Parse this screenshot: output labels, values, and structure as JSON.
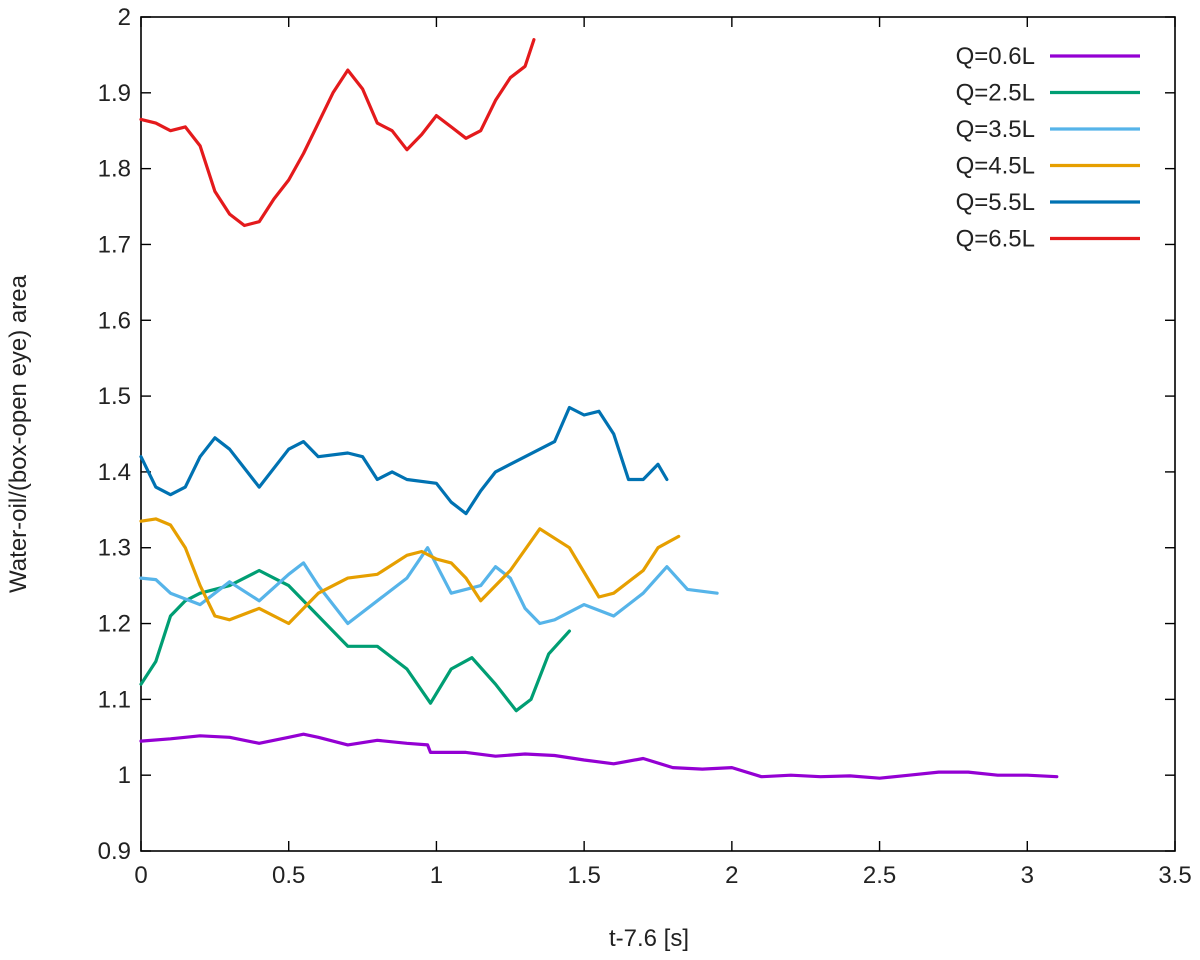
{
  "chart_data": {
    "type": "line",
    "title": "",
    "xlabel": "t-7.6 [s]",
    "ylabel": "Water-oil/(box-open eye) area",
    "xlim": [
      0,
      3.5
    ],
    "ylim": [
      0.9,
      2.0
    ],
    "xticks": [
      0,
      0.5,
      1,
      1.5,
      2,
      2.5,
      3,
      3.5
    ],
    "yticks": [
      0.9,
      1.0,
      1.1,
      1.2,
      1.3,
      1.4,
      1.5,
      1.6,
      1.7,
      1.8,
      1.9,
      2.0
    ],
    "xtick_labels": [
      "0",
      "0.5",
      "1",
      "1.5",
      "2",
      "2.5",
      "3",
      "3.5"
    ],
    "ytick_labels": [
      "0.9",
      "1",
      "1.1",
      "1.2",
      "1.3",
      "1.4",
      "1.5",
      "1.6",
      "1.7",
      "1.8",
      "1.9",
      "2"
    ],
    "grid": false,
    "legend_position": "top-right",
    "series": [
      {
        "name": "Q=0.6L",
        "color": "#9400D3",
        "x": [
          0,
          0.1,
          0.2,
          0.3,
          0.4,
          0.5,
          0.55,
          0.6,
          0.7,
          0.8,
          0.9,
          0.97,
          0.98,
          1.1,
          1.2,
          1.3,
          1.4,
          1.5,
          1.6,
          1.7,
          1.8,
          1.9,
          2.0,
          2.1,
          2.2,
          2.3,
          2.4,
          2.5,
          2.6,
          2.7,
          2.8,
          2.9,
          3.0,
          3.1
        ],
        "y": [
          1.045,
          1.048,
          1.052,
          1.05,
          1.042,
          1.05,
          1.054,
          1.05,
          1.04,
          1.046,
          1.042,
          1.04,
          1.03,
          1.03,
          1.025,
          1.028,
          1.026,
          1.02,
          1.015,
          1.022,
          1.01,
          1.008,
          1.01,
          0.998,
          1.0,
          0.998,
          0.999,
          0.996,
          1.0,
          1.004,
          1.004,
          1.0,
          1.0,
          0.998
        ]
      },
      {
        "name": "Q=2.5L",
        "color": "#009E73",
        "x": [
          0,
          0.05,
          0.1,
          0.15,
          0.2,
          0.3,
          0.35,
          0.4,
          0.45,
          0.5,
          0.6,
          0.7,
          0.8,
          0.9,
          0.98,
          1.05,
          1.12,
          1.2,
          1.27,
          1.32,
          1.38,
          1.45
        ],
        "y": [
          1.12,
          1.15,
          1.21,
          1.23,
          1.24,
          1.25,
          1.26,
          1.27,
          1.26,
          1.25,
          1.21,
          1.17,
          1.17,
          1.14,
          1.095,
          1.14,
          1.155,
          1.12,
          1.085,
          1.1,
          1.16,
          1.19
        ]
      },
      {
        "name": "Q=3.5L",
        "color": "#56B4E9",
        "x": [
          0,
          0.05,
          0.1,
          0.2,
          0.3,
          0.4,
          0.5,
          0.55,
          0.6,
          0.7,
          0.8,
          0.9,
          0.97,
          1.05,
          1.15,
          1.2,
          1.25,
          1.3,
          1.35,
          1.4,
          1.5,
          1.6,
          1.7,
          1.78,
          1.85,
          1.95
        ],
        "y": [
          1.26,
          1.258,
          1.24,
          1.225,
          1.255,
          1.23,
          1.265,
          1.28,
          1.25,
          1.2,
          1.23,
          1.26,
          1.3,
          1.24,
          1.25,
          1.275,
          1.26,
          1.22,
          1.2,
          1.205,
          1.225,
          1.21,
          1.24,
          1.275,
          1.245,
          1.24
        ]
      },
      {
        "name": "Q=4.5L",
        "color": "#E69F00",
        "x": [
          0,
          0.05,
          0.1,
          0.15,
          0.2,
          0.25,
          0.3,
          0.4,
          0.5,
          0.6,
          0.7,
          0.8,
          0.9,
          0.95,
          1.0,
          1.05,
          1.1,
          1.15,
          1.25,
          1.35,
          1.45,
          1.55,
          1.6,
          1.7,
          1.75,
          1.82
        ],
        "y": [
          1.335,
          1.338,
          1.33,
          1.3,
          1.25,
          1.21,
          1.205,
          1.22,
          1.2,
          1.24,
          1.26,
          1.265,
          1.29,
          1.295,
          1.285,
          1.28,
          1.26,
          1.23,
          1.27,
          1.325,
          1.3,
          1.235,
          1.24,
          1.27,
          1.3,
          1.315
        ]
      },
      {
        "name": "Q=5.5L",
        "color": "#0072B2",
        "x": [
          0,
          0.05,
          0.1,
          0.15,
          0.2,
          0.25,
          0.3,
          0.4,
          0.5,
          0.55,
          0.6,
          0.7,
          0.75,
          0.8,
          0.85,
          0.9,
          1.0,
          1.05,
          1.1,
          1.15,
          1.2,
          1.3,
          1.4,
          1.45,
          1.5,
          1.55,
          1.6,
          1.65,
          1.7,
          1.75,
          1.78
        ],
        "y": [
          1.42,
          1.38,
          1.37,
          1.38,
          1.42,
          1.445,
          1.43,
          1.38,
          1.43,
          1.44,
          1.42,
          1.425,
          1.42,
          1.39,
          1.4,
          1.39,
          1.385,
          1.36,
          1.345,
          1.375,
          1.4,
          1.42,
          1.44,
          1.485,
          1.475,
          1.48,
          1.45,
          1.39,
          1.39,
          1.41,
          1.39
        ]
      },
      {
        "name": "Q=6.5L",
        "color": "#E41A1C",
        "x": [
          0,
          0.05,
          0.1,
          0.15,
          0.2,
          0.25,
          0.3,
          0.35,
          0.4,
          0.45,
          0.5,
          0.55,
          0.6,
          0.65,
          0.7,
          0.75,
          0.8,
          0.85,
          0.9,
          0.95,
          1.0,
          1.05,
          1.1,
          1.15,
          1.2,
          1.25,
          1.3,
          1.33
        ],
        "y": [
          1.865,
          1.86,
          1.85,
          1.855,
          1.83,
          1.77,
          1.74,
          1.725,
          1.73,
          1.76,
          1.785,
          1.82,
          1.86,
          1.9,
          1.93,
          1.905,
          1.86,
          1.85,
          1.825,
          1.845,
          1.87,
          1.855,
          1.84,
          1.85,
          1.89,
          1.92,
          1.935,
          1.97
        ]
      }
    ]
  }
}
